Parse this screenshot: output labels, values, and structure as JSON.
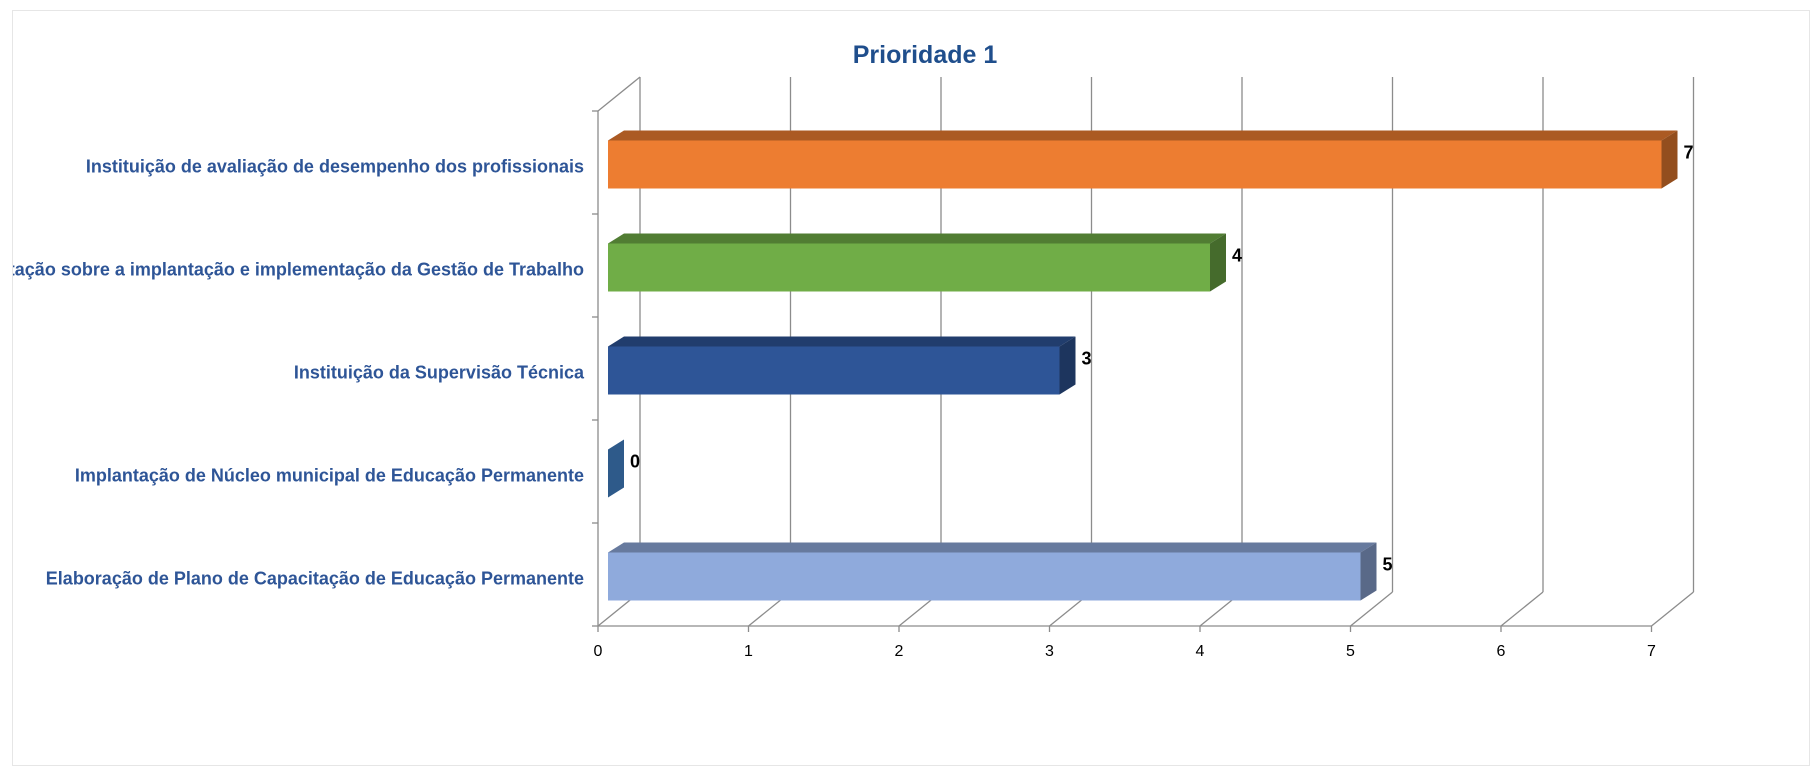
{
  "chart_data": {
    "type": "bar",
    "orientation": "horizontal",
    "style": "3d",
    "title": "Prioridade 1",
    "categories": [
      "Elaboração de Plano de Capacitação de Educação Permanente",
      "Implantação de Núcleo municipal de Educação Permanente",
      "Instituição da Supervisão Técnica",
      "Orientação sobre a implantação e implementação da Gestão de Trabalho",
      "Instituição de avaliação de desempenho dos profissionais"
    ],
    "values": [
      5,
      0,
      3,
      4,
      7
    ],
    "colors": [
      "#8faadc",
      "#2e5a8a",
      "#2e5597",
      "#70ad47",
      "#ed7d31"
    ],
    "xlim": [
      0,
      7
    ],
    "xticks": [
      "0",
      "1",
      "2",
      "3",
      "4",
      "5",
      "6",
      "7"
    ],
    "grid": true,
    "legend": "none"
  }
}
